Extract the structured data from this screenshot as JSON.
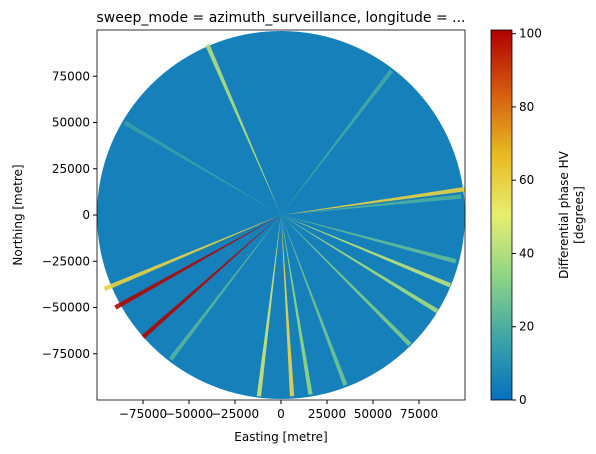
{
  "chart_data": {
    "type": "radar_ppi",
    "title": "sweep_mode = azimuth_surveillance, longitude = ...",
    "xlabel": "Easting [metre]",
    "ylabel": "Northing [metre]",
    "colorbar_label": [
      "Differential phase HV",
      "[degrees]"
    ],
    "xlim": [
      -100000,
      100000
    ],
    "ylim": [
      -100000,
      100000
    ],
    "xticks": [
      {
        "value": -75000,
        "label": "−75000"
      },
      {
        "value": -50000,
        "label": "−50000"
      },
      {
        "value": -25000,
        "label": "−25000"
      },
      0,
      25000,
      50000,
      75000
    ],
    "yticks": [
      {
        "value": -75000,
        "label": "−75000"
      },
      {
        "value": -50000,
        "label": "−50000"
      },
      {
        "value": -25000,
        "label": "−25000"
      },
      0,
      25000,
      50000,
      75000
    ],
    "clim": [
      0,
      101
    ],
    "cticks": [
      0,
      20,
      40,
      60,
      80,
      100
    ],
    "colormap": [
      "#0570c0",
      "#3ca5a8",
      "#8ed585",
      "#e8ee70",
      "#e8b820",
      "#d45a10",
      "#b00000"
    ],
    "range": 100000,
    "background_value": 5,
    "rays": [
      {
        "x": -75000,
        "y": -66000,
        "value": 100
      },
      {
        "x": -90000,
        "y": -50000,
        "value": 100
      },
      {
        "x": -96000,
        "y": -40000,
        "value": 60
      },
      {
        "x": 100000,
        "y": 14000,
        "value": 60
      },
      {
        "x": 92000,
        "y": -38000,
        "value": 42
      },
      {
        "x": 85000,
        "y": -52000,
        "value": 38
      },
      {
        "x": 70000,
        "y": -70000,
        "value": 30
      },
      {
        "x": 95000,
        "y": -25000,
        "value": 25
      },
      {
        "x": -12000,
        "y": -98000,
        "value": 45
      },
      {
        "x": 6000,
        "y": -98000,
        "value": 58
      },
      {
        "x": 16000,
        "y": -97000,
        "value": 35
      },
      {
        "x": 35000,
        "y": -92000,
        "value": 28
      },
      {
        "x": -40000,
        "y": 92000,
        "value": 40
      },
      {
        "x": -85000,
        "y": 50000,
        "value": 15
      },
      {
        "x": 60000,
        "y": 78000,
        "value": 18
      },
      {
        "x": 98000,
        "y": 10000,
        "value": 20
      },
      {
        "x": -60000,
        "y": -78000,
        "value": 22
      }
    ]
  }
}
